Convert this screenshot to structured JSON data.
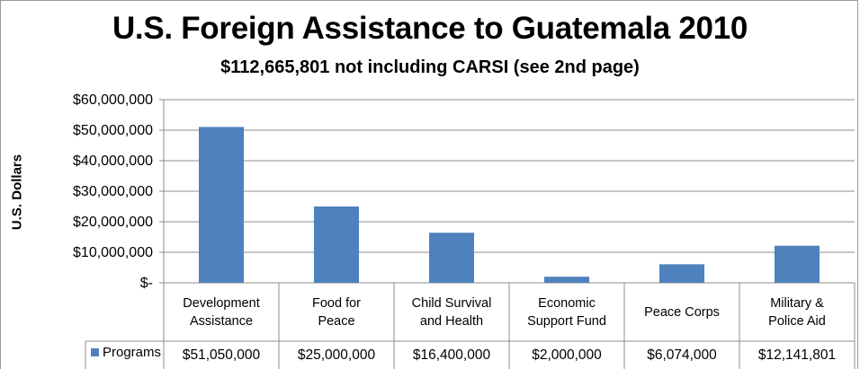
{
  "chart_data": {
    "type": "bar",
    "title": "U.S. Foreign Assistance to Guatemala 2010",
    "subtitle": "$112,665,801 not including CARSI (see 2nd page)",
    "ylabel": "U.S. Dollars",
    "xlabel": "",
    "ylim": [
      0,
      60000000
    ],
    "y_ticks": [
      {
        "value": 0,
        "label": "$-"
      },
      {
        "value": 10000000,
        "label": "$10,000,000"
      },
      {
        "value": 20000000,
        "label": "$20,000,000"
      },
      {
        "value": 30000000,
        "label": "$30,000,000"
      },
      {
        "value": 40000000,
        "label": "$40,000,000"
      },
      {
        "value": 50000000,
        "label": "$50,000,000"
      },
      {
        "value": 60000000,
        "label": "$60,000,000"
      }
    ],
    "grid": true,
    "categories": [
      [
        "Development",
        "Assistance"
      ],
      [
        "Food for",
        "Peace"
      ],
      [
        "Child Survival",
        "and Health"
      ],
      [
        "Economic",
        "Support Fund"
      ],
      [
        "Peace Corps"
      ],
      [
        "Military &",
        "Police Aid"
      ]
    ],
    "series": [
      {
        "name": "Programs",
        "color": "#4f81bd",
        "values": [
          51050000,
          25000000,
          16400000,
          2000000,
          6074000,
          12141801
        ],
        "table_labels": [
          "$51,050,000",
          "$25,000,000",
          "$16,400,000",
          "$2,000,000",
          "$6,074,000",
          "$12,141,801"
        ]
      }
    ],
    "legend": "data-table"
  }
}
